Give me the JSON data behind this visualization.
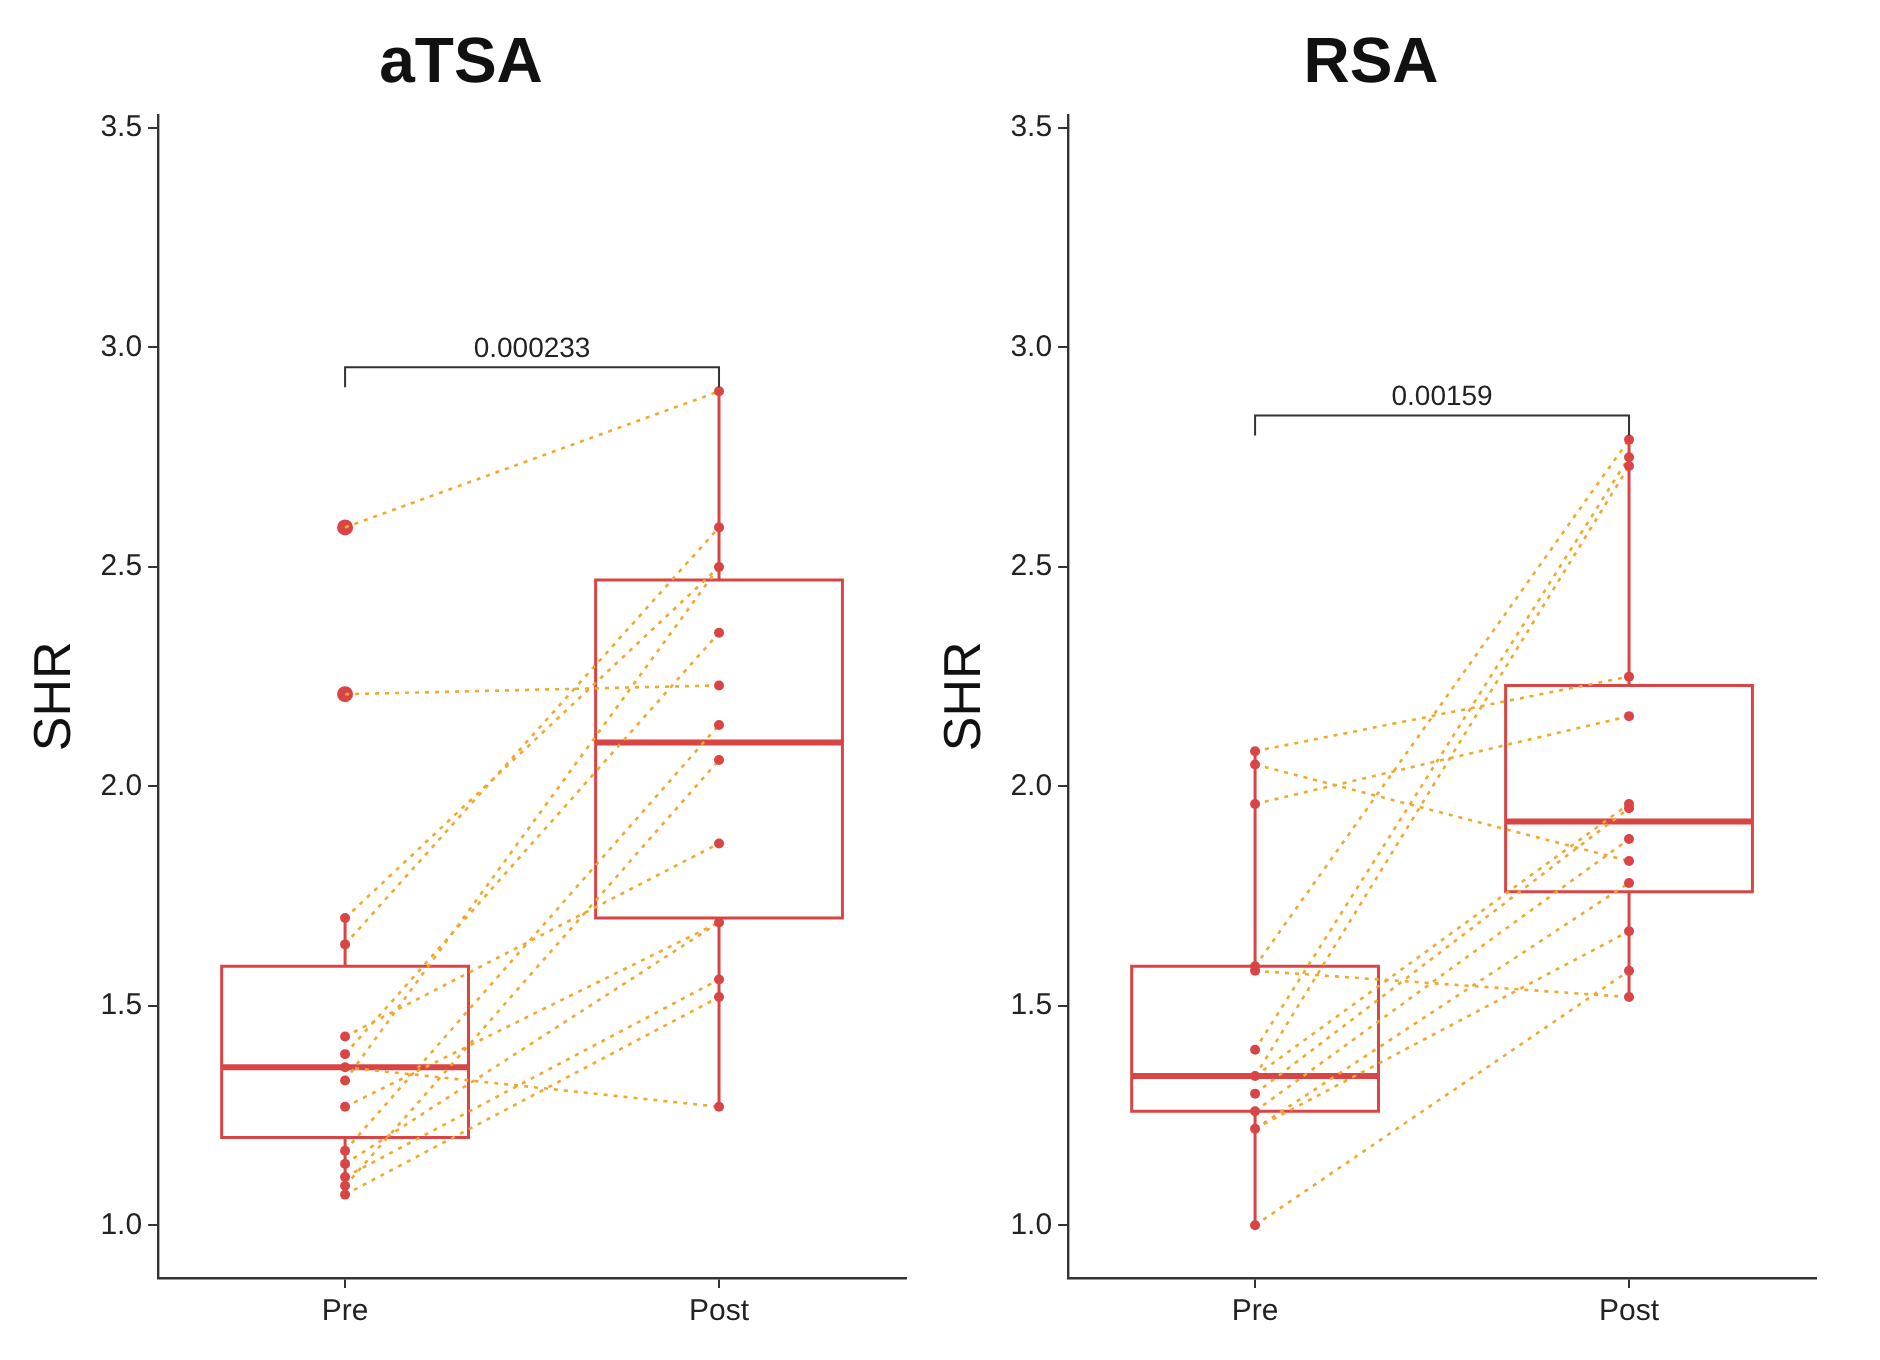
{
  "chart_data": [
    {
      "type": "box",
      "title": "aTSA",
      "ylabel": "SHR",
      "categories": [
        "Pre",
        "Post"
      ],
      "ylim": [
        0.88,
        3.53
      ],
      "yticks": [
        {
          "value": 1,
          "label": "1.0"
        },
        {
          "value": 1.5,
          "label": "1.5"
        },
        {
          "value": 2,
          "label": "2.0"
        },
        {
          "value": 2.5,
          "label": "2.5"
        },
        {
          "value": 3,
          "label": "3.0"
        },
        {
          "value": 3.5,
          "label": "3.5"
        }
      ],
      "annotations": [
        "0.000233"
      ],
      "color": "#d94545",
      "boxes": [
        {
          "low": 1.07,
          "q1": 1.2,
          "median": 1.36,
          "q3": 1.59,
          "high": 1.7,
          "outliers": [
            2.59,
            2.21
          ]
        },
        {
          "low": 1.27,
          "q1": 1.7,
          "median": 2.1,
          "q3": 2.47,
          "high": 2.9
        }
      ],
      "series": [
        {
          "type": "line",
          "color": "#f0a830",
          "line_style": "dotted",
          "values": [
            2.59,
            2.9
          ]
        },
        {
          "type": "line",
          "color": "#f0a830",
          "line_style": "dotted",
          "values": [
            2.21,
            2.23
          ]
        },
        {
          "type": "line",
          "color": "#f0a830",
          "line_style": "dotted",
          "values": [
            1.7,
            2.5
          ]
        },
        {
          "type": "line",
          "color": "#f0a830",
          "line_style": "dotted",
          "values": [
            1.64,
            2.59
          ]
        },
        {
          "type": "line",
          "color": "#f0a830",
          "line_style": "dotted",
          "values": [
            1.43,
            1.87
          ]
        },
        {
          "type": "line",
          "color": "#f0a830",
          "line_style": "dotted",
          "values": [
            1.39,
            2.35
          ]
        },
        {
          "type": "line",
          "color": "#f0a830",
          "line_style": "dotted",
          "values": [
            1.36,
            1.27
          ]
        },
        {
          "type": "line",
          "color": "#f0a830",
          "line_style": "dotted",
          "values": [
            1.33,
            2.5
          ]
        },
        {
          "type": "line",
          "color": "#f0a830",
          "line_style": "dotted",
          "values": [
            1.27,
            1.69
          ]
        },
        {
          "type": "line",
          "color": "#f0a830",
          "line_style": "dotted",
          "values": [
            1.17,
            2.14
          ]
        },
        {
          "type": "line",
          "color": "#f0a830",
          "line_style": "dotted",
          "values": [
            1.14,
            1.69
          ]
        },
        {
          "type": "line",
          "color": "#f0a830",
          "line_style": "dotted",
          "values": [
            1.11,
            1.56
          ]
        },
        {
          "type": "line",
          "color": "#f0a830",
          "line_style": "dotted",
          "values": [
            1.09,
            2.06
          ]
        },
        {
          "type": "line",
          "color": "#f0a830",
          "line_style": "dotted",
          "values": [
            1.07,
            1.52
          ]
        },
        {
          "type": "scatter",
          "color": "#d94545",
          "marker": "circle",
          "x": [
            "Pre",
            "Pre",
            "Pre",
            "Pre",
            "Pre",
            "Pre",
            "Pre",
            "Pre",
            "Pre",
            "Pre",
            "Pre",
            "Pre",
            "Post",
            "Post",
            "Post",
            "Post",
            "Post",
            "Post",
            "Post",
            "Post",
            "Post",
            "Post",
            "Post",
            "Post"
          ],
          "values": [
            1.7,
            1.64,
            1.43,
            1.39,
            1.36,
            1.33,
            1.27,
            1.17,
            1.14,
            1.11,
            1.09,
            1.07,
            2.9,
            2.59,
            2.5,
            2.35,
            2.23,
            2.14,
            2.06,
            1.87,
            1.69,
            1.56,
            1.52,
            1.27
          ]
        }
      ]
    },
    {
      "type": "box",
      "title": "RSA",
      "ylabel": "SHR",
      "categories": [
        "Pre",
        "Post"
      ],
      "ylim": [
        0.88,
        3.53
      ],
      "yticks": [
        {
          "value": 1,
          "label": "1.0"
        },
        {
          "value": 1.5,
          "label": "1.5"
        },
        {
          "value": 2,
          "label": "2.0"
        },
        {
          "value": 2.5,
          "label": "2.5"
        },
        {
          "value": 3,
          "label": "3.0"
        },
        {
          "value": 3.5,
          "label": "3.5"
        }
      ],
      "annotations": [
        "0.00159"
      ],
      "color": "#d94545",
      "boxes": [
        {
          "low": 1.0,
          "q1": 1.26,
          "median": 1.34,
          "q3": 1.59,
          "high": 2.08
        },
        {
          "low": 1.52,
          "q1": 1.76,
          "median": 1.92,
          "q3": 2.23,
          "high": 2.79
        }
      ],
      "series": [
        {
          "type": "line",
          "color": "#f0a830",
          "line_style": "dotted",
          "values": [
            2.08,
            2.25
          ]
        },
        {
          "type": "line",
          "color": "#f0a830",
          "line_style": "dotted",
          "values": [
            2.05,
            1.83
          ]
        },
        {
          "type": "line",
          "color": "#f0a830",
          "line_style": "dotted",
          "values": [
            1.96,
            2.16
          ]
        },
        {
          "type": "line",
          "color": "#f0a830",
          "line_style": "dotted",
          "values": [
            1.59,
            2.79
          ]
        },
        {
          "type": "line",
          "color": "#f0a830",
          "line_style": "dotted",
          "values": [
            1.58,
            1.52
          ]
        },
        {
          "type": "line",
          "color": "#f0a830",
          "line_style": "dotted",
          "values": [
            1.4,
            2.75
          ]
        },
        {
          "type": "line",
          "color": "#f0a830",
          "line_style": "dotted",
          "values": [
            1.34,
            2.73
          ]
        },
        {
          "type": "line",
          "color": "#f0a830",
          "line_style": "dotted",
          "values": [
            1.34,
            1.96
          ]
        },
        {
          "type": "line",
          "color": "#f0a830",
          "line_style": "dotted",
          "values": [
            1.3,
            1.95
          ]
        },
        {
          "type": "line",
          "color": "#f0a830",
          "line_style": "dotted",
          "values": [
            1.26,
            1.88
          ]
        },
        {
          "type": "line",
          "color": "#f0a830",
          "line_style": "dotted",
          "values": [
            1.22,
            1.78
          ]
        },
        {
          "type": "line",
          "color": "#f0a830",
          "line_style": "dotted",
          "values": [
            1.22,
            1.67
          ]
        },
        {
          "type": "line",
          "color": "#f0a830",
          "line_style": "dotted",
          "values": [
            1.0,
            1.58
          ]
        },
        {
          "type": "scatter",
          "color": "#d94545",
          "marker": "circle",
          "x": [
            "Pre",
            "Pre",
            "Pre",
            "Pre",
            "Pre",
            "Pre",
            "Pre",
            "Pre",
            "Pre",
            "Pre",
            "Pre",
            "Post",
            "Post",
            "Post",
            "Post",
            "Post",
            "Post",
            "Post",
            "Post",
            "Post",
            "Post",
            "Post",
            "Post",
            "Post"
          ],
          "values": [
            2.08,
            2.05,
            1.96,
            1.59,
            1.58,
            1.4,
            1.34,
            1.3,
            1.26,
            1.22,
            1.0,
            2.25,
            1.83,
            2.16,
            2.79,
            1.52,
            2.75,
            2.73,
            1.96,
            1.95,
            1.88,
            1.78,
            1.67,
            1.58
          ]
        }
      ]
    }
  ]
}
